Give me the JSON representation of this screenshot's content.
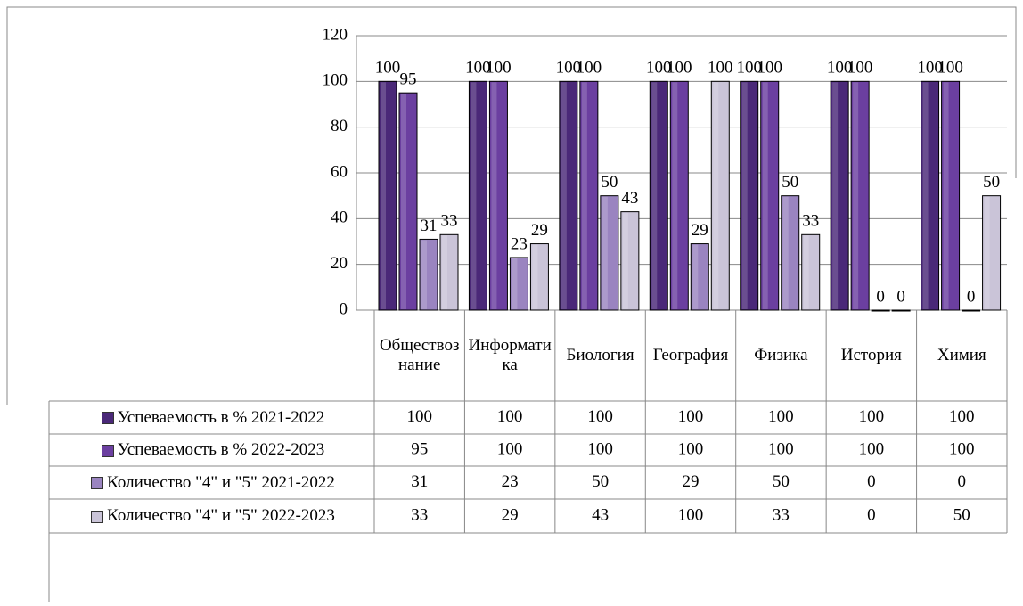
{
  "chart_data": {
    "type": "bar",
    "categories": [
      "Обществознание",
      "Информатика",
      "Биология",
      "География",
      "Физика",
      "История",
      "Химия"
    ],
    "series": [
      {
        "name": "Успеваемость в % 2021-2022",
        "color": "#4a2878",
        "values": [
          100,
          100,
          100,
          100,
          100,
          100,
          100
        ]
      },
      {
        "name": "Успеваемость в % 2022-2023",
        "color": "#6b3fa0",
        "values": [
          95,
          100,
          100,
          100,
          100,
          100,
          100
        ]
      },
      {
        "name": "Количество \"4\" и \"5\" 2021-2022",
        "color": "#9a84c0",
        "values": [
          31,
          23,
          50,
          29,
          50,
          0,
          0
        ]
      },
      {
        "name": "Количество \"4\" и \"5\" 2022-2023",
        "color": "#cac4d8",
        "values": [
          33,
          29,
          43,
          100,
          33,
          0,
          50
        ]
      }
    ],
    "ylim": [
      0,
      120
    ],
    "yticks": [
      0,
      20,
      40,
      60,
      80,
      100,
      120
    ],
    "grid": true
  }
}
